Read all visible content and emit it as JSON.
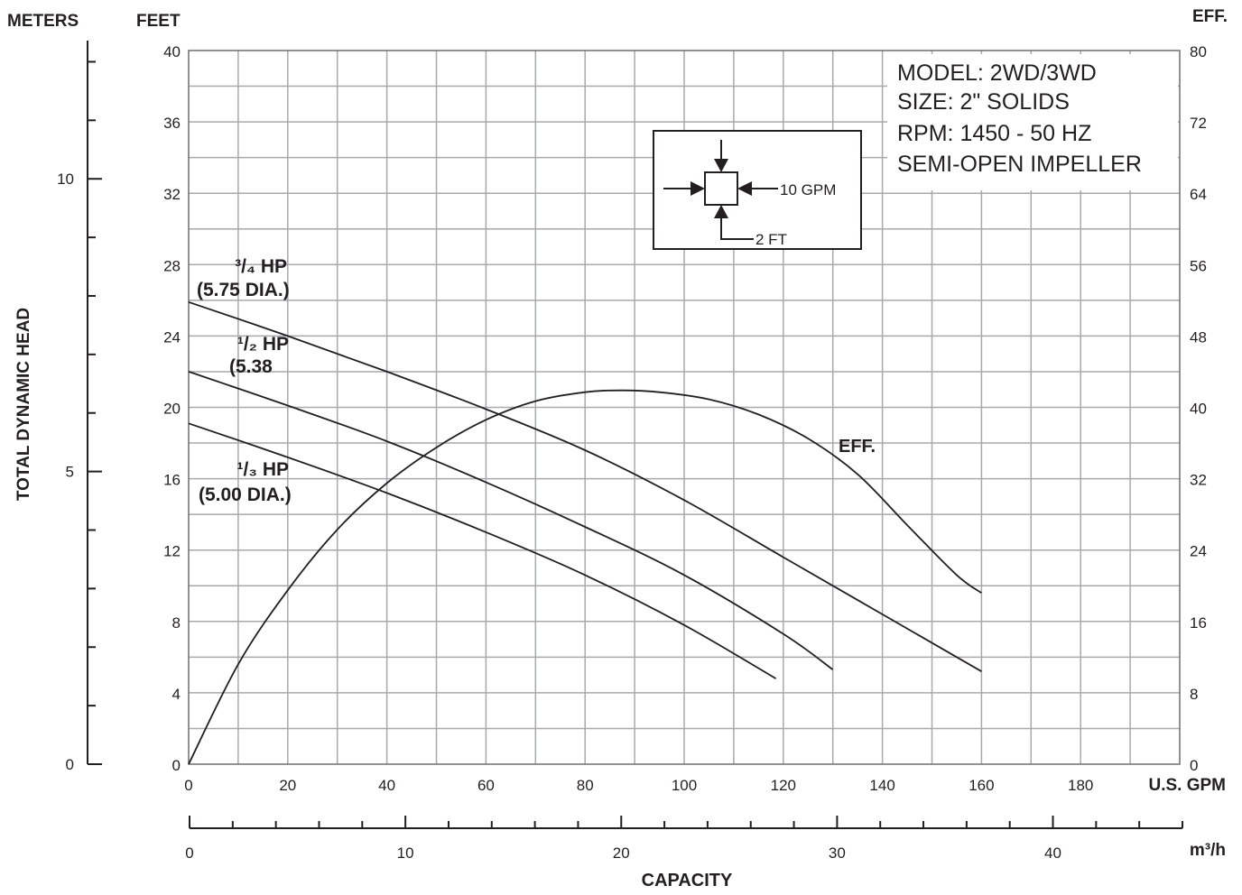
{
  "chart_data": {
    "type": "line",
    "axes": {
      "meters": {
        "title": "METERS",
        "ticks": [
          0,
          5,
          10
        ],
        "tick_labels": [
          "0",
          "5",
          "10"
        ],
        "range": [
          0,
          12.192
        ]
      },
      "feet": {
        "title": "FEET",
        "ticks": [
          0,
          4,
          8,
          12,
          16,
          20,
          24,
          28,
          32,
          36,
          40
        ],
        "tick_labels": [
          "0",
          "4",
          "8",
          "12",
          "16",
          "20",
          "24",
          "28",
          "32",
          "36",
          "40"
        ],
        "range": [
          0,
          40
        ]
      },
      "efficiency": {
        "title": "EFF.",
        "ticks": [
          0,
          8,
          16,
          24,
          32,
          40,
          48,
          56,
          64,
          72,
          80
        ],
        "tick_labels": [
          "0",
          "8",
          "16",
          "24",
          "32",
          "40",
          "48",
          "56",
          "64",
          "72",
          "80"
        ],
        "range": [
          0,
          80
        ]
      },
      "gpm": {
        "title": "U.S. GPM",
        "ticks": [
          0,
          20,
          40,
          60,
          80,
          100,
          120,
          140,
          160,
          180
        ],
        "tick_labels": [
          "0",
          "20",
          "40",
          "60",
          "80",
          "100",
          "120",
          "140",
          "160",
          "180"
        ],
        "range": [
          0,
          200
        ]
      },
      "m3h": {
        "unit": "m³/h",
        "ticks": [
          0,
          10,
          20,
          30,
          40
        ],
        "tick_labels": [
          "0",
          "10",
          "20",
          "30",
          "40"
        ],
        "range": [
          0,
          46
        ]
      }
    },
    "ylabel": "TOTAL DYNAMIC HEAD",
    "xlabel": "CAPACITY",
    "grid": true,
    "model_box": [
      "MODEL: 2WD/3WD",
      "SIZE: 2\" SOLIDS",
      "RPM: 1450 - 50 HZ",
      "SEMI-OPEN IMPELLER"
    ],
    "scale_key": {
      "gpm_label": "10 GPM",
      "ft_label": "2 FT"
    },
    "series": [
      {
        "name": "3/4 HP (5.75 DIA.)",
        "label_lines": [
          "³/₄ HP",
          "(5.75 DIA.)"
        ],
        "x": [
          0,
          20,
          40,
          60,
          80,
          100,
          120,
          140,
          160
        ],
        "y": [
          25.9,
          24.0,
          22.0,
          19.9,
          17.6,
          14.8,
          11.6,
          8.4,
          5.2
        ]
      },
      {
        "name": "1/2 HP (5.38",
        "label_lines": [
          "¹/₂ HP",
          "(5.38"
        ],
        "x": [
          0,
          20,
          40,
          60,
          80,
          100,
          120,
          130
        ],
        "y": [
          22.0,
          20.1,
          18.1,
          15.8,
          13.3,
          10.6,
          7.3,
          5.3
        ]
      },
      {
        "name": "1/3 HP (5.00 DIA.)",
        "label_lines": [
          "¹/₃ HP",
          "(5.00 DIA.)"
        ],
        "x": [
          0,
          20,
          40,
          60,
          80,
          100,
          118.5
        ],
        "y": [
          19.1,
          17.2,
          15.2,
          13.0,
          10.6,
          7.8,
          4.8
        ]
      },
      {
        "name": "EFF.",
        "label_lines": [
          "EFF."
        ],
        "axis": "efficiency",
        "x": [
          0,
          10,
          20,
          30,
          40,
          50,
          60,
          70,
          80,
          87.5,
          95,
          105,
          115,
          125,
          135,
          145,
          155,
          160
        ],
        "y": [
          0,
          11.2,
          19.5,
          26.3,
          31.5,
          35.5,
          38.6,
          40.7,
          41.7,
          41.9,
          41.7,
          40.9,
          39.2,
          36.5,
          32.5,
          26.8,
          21.2,
          19.2
        ]
      }
    ]
  }
}
